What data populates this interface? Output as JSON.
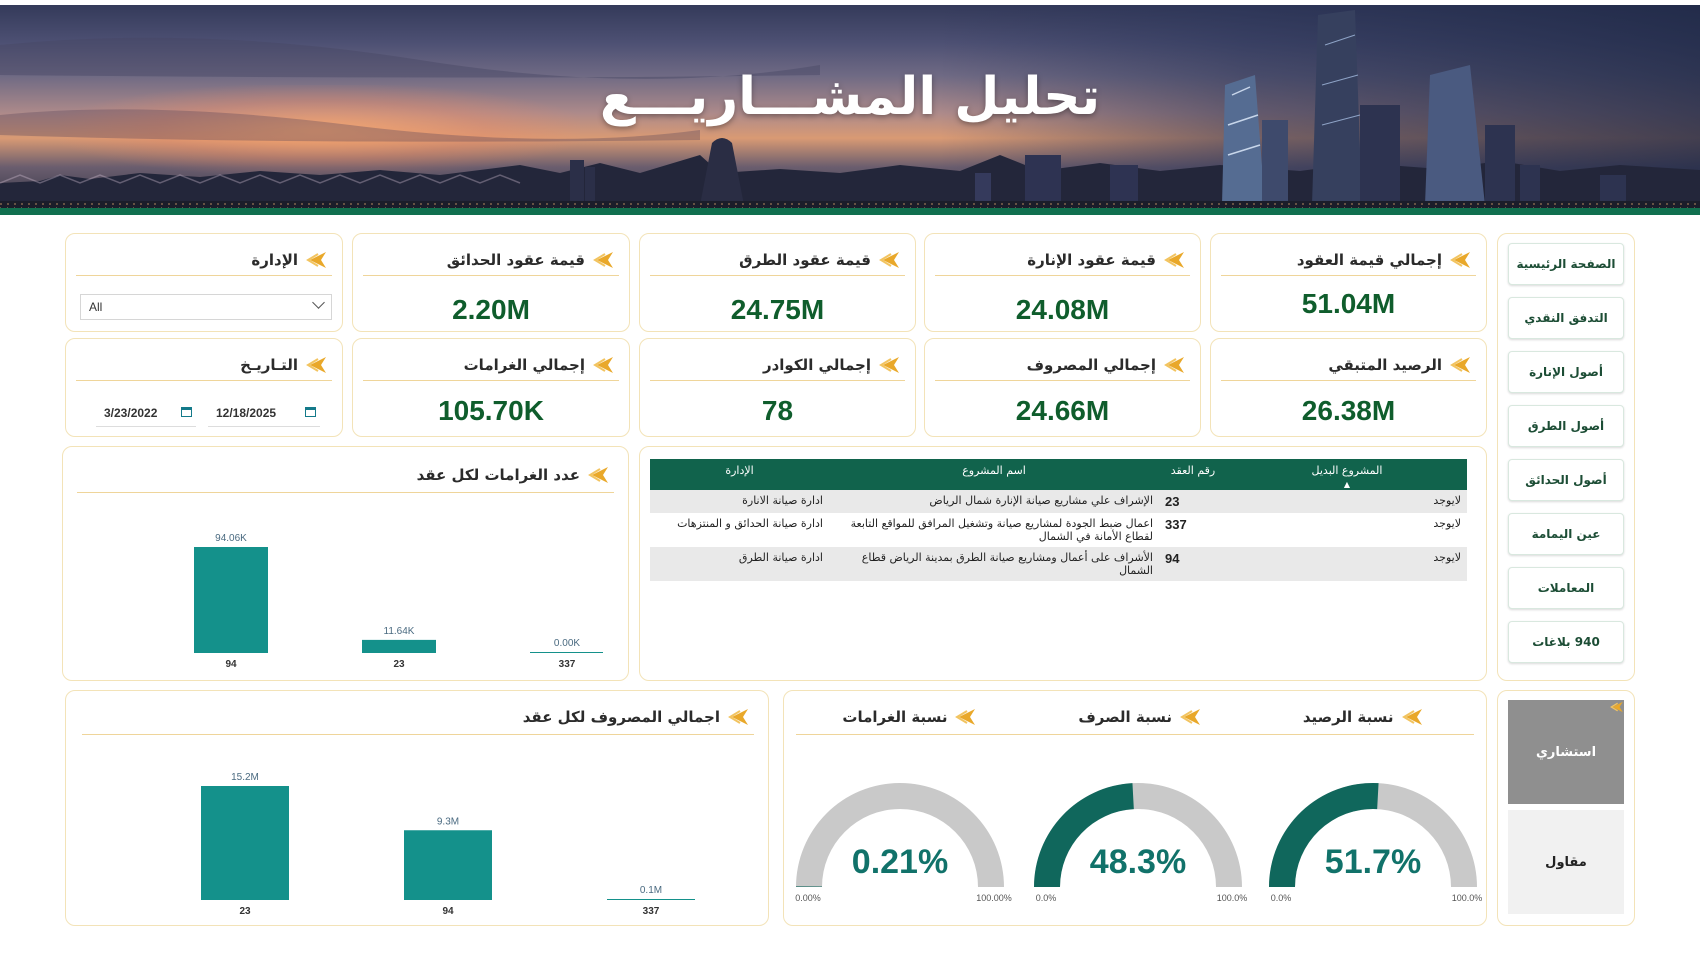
{
  "header": {
    "title": "تحليل المشـــاريـــع"
  },
  "kpis": {
    "total_contracts": {
      "label": "إجمالي قيمة العقود",
      "value": "51.04M"
    },
    "lighting_contracts": {
      "label": "قيمة عقود الإنارة",
      "value": "24.08M"
    },
    "road_contracts": {
      "label": "قيمة عقود الطرق",
      "value": "24.75M"
    },
    "garden_contracts": {
      "label": "قيمة عقود الحدائق",
      "value": "2.20M"
    },
    "remaining_balance": {
      "label": "الرصيد المتبقي",
      "value": "26.38M"
    },
    "total_spent": {
      "label": "إجمالي المصروف",
      "value": "24.66M"
    },
    "total_staff": {
      "label": "إجمالي الكوادر",
      "value": "78"
    },
    "total_fines": {
      "label": "إجمالي الغرامات",
      "value": "105.70K"
    }
  },
  "filters": {
    "department": {
      "label": "الإدارة",
      "value": "All"
    },
    "date": {
      "label": "التـاريـخ",
      "start": "3/23/2022",
      "end": "12/18/2025"
    }
  },
  "nav": {
    "items": [
      {
        "label": "الصفحة الرئيسية"
      },
      {
        "label": "التدفق النقدي"
      },
      {
        "label": "أصول الإنارة"
      },
      {
        "label": "أصول الطرق"
      },
      {
        "label": "أصول الحدائق"
      },
      {
        "label": "عين اليمامة"
      },
      {
        "label": "المعاملات"
      },
      {
        "label": "940 بلاغات"
      }
    ]
  },
  "table": {
    "headers": [
      "المشروع البديل",
      "رقم العقد",
      "اسم المشروع",
      "الإدارة"
    ],
    "rows": [
      {
        "alt": "لايوجد",
        "contract": "23",
        "name": "الإشراف علي مشاريع صيانة الإنارة شمال الرياض",
        "dept": "ادارة صيانة الانارة"
      },
      {
        "alt": "لايوجد",
        "contract": "337",
        "name": "اعمال ضبط الجودة لمشاريع صيانة وتشغيل المرافق للمواقع التابعة لقطاع الأمانة في الشمال",
        "dept": "ادارة صيانة الحدائق و المنتزهات"
      },
      {
        "alt": "لايوجد",
        "contract": "94",
        "name": "الأشراف على أعمال ومشاريع صيانة الطرق بمدينة الرياض قطاع الشمال",
        "dept": "ادارة صيانة الطرق"
      }
    ]
  },
  "fines_chart": {
    "label": "عدد الغرامات لكل عقد",
    "chart_data": {
      "type": "bar",
      "categories": [
        "94",
        "23",
        "337"
      ],
      "values": [
        94.06,
        11.64,
        0.0
      ],
      "value_labels": [
        "94.06K",
        "11.64K",
        "0.00K"
      ],
      "unit": "K",
      "color": "#14918b"
    }
  },
  "spent_chart": {
    "label": "اجمالي المصروف لكل عقد",
    "chart_data": {
      "type": "bar",
      "categories": [
        "23",
        "94",
        "337"
      ],
      "values": [
        15.2,
        9.3,
        0.1
      ],
      "value_labels": [
        "15.2M",
        "9.3M",
        "0.1M"
      ],
      "unit": "M",
      "color": "#14918b"
    }
  },
  "gauges": [
    {
      "label": "نسبة الرصيد",
      "value": 51.7,
      "display": "51.7%",
      "min": "0.0%",
      "max": "100.0%"
    },
    {
      "label": "نسبة الصرف",
      "value": 48.3,
      "display": "48.3%",
      "min": "0.0%",
      "max": "100.0%"
    },
    {
      "label": "نسبة الغرامات",
      "value": 0.21,
      "display": "0.21%",
      "min": "0.00%",
      "max": "100.00%"
    }
  ],
  "role_switch": {
    "consultant": "استشاري",
    "contractor": "مقاول"
  },
  "colors": {
    "primary": "#11634c",
    "accent_gold": "#e6a92a",
    "bar": "#14918b",
    "gauge_fill": "#10675c",
    "gauge_bg": "#c9c9c9"
  }
}
